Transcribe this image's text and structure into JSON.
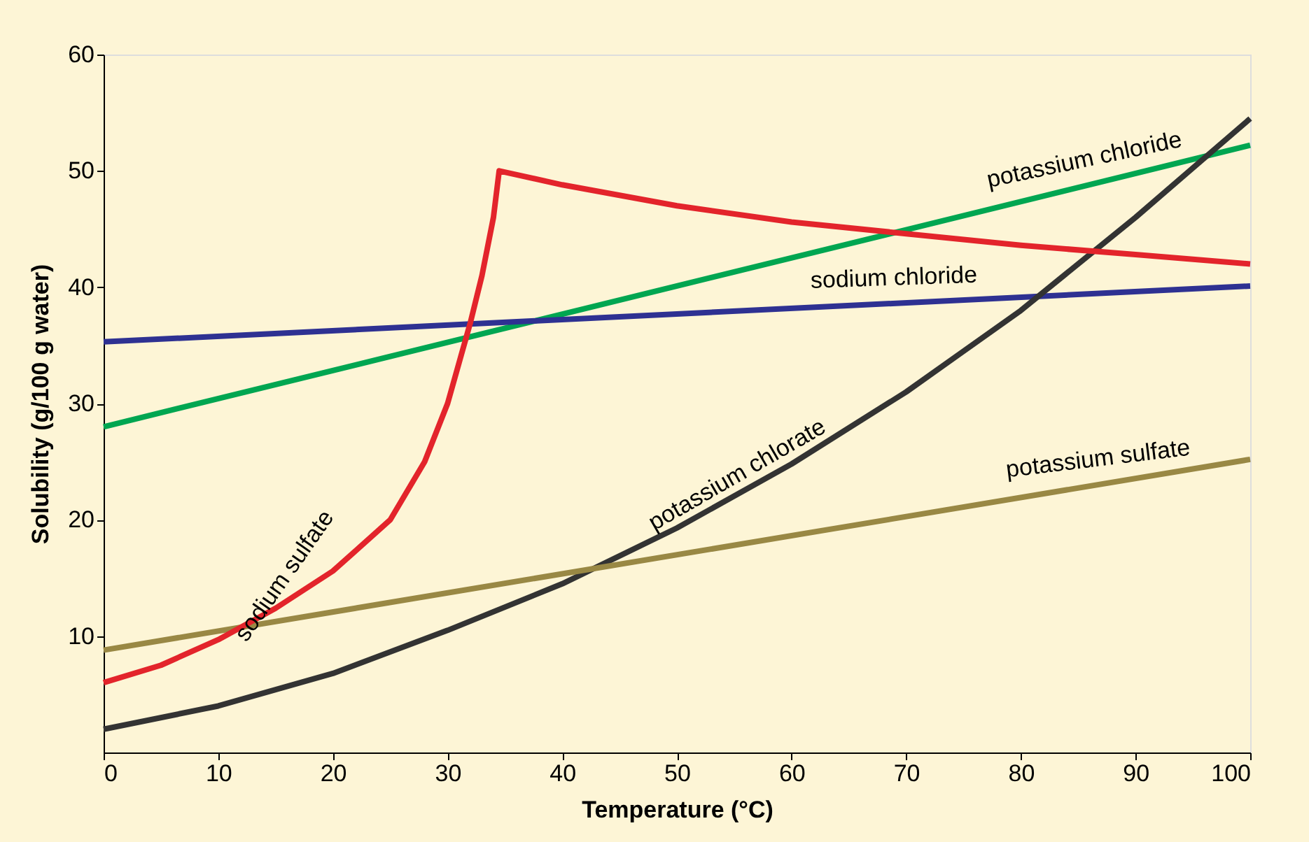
{
  "chart_data": {
    "type": "line",
    "xlabel": "Temperature (°C)",
    "ylabel": "Solubility (g/100 g water)",
    "xlim": [
      0,
      100
    ],
    "ylim": [
      0,
      60
    ],
    "xticks": [
      0,
      10,
      20,
      30,
      40,
      50,
      60,
      70,
      80,
      90,
      100
    ],
    "yticks": [
      10,
      20,
      30,
      40,
      50,
      60
    ],
    "grid": false,
    "legend": false,
    "marker": "none",
    "line_style": "solid",
    "series": [
      {
        "name": "potassium chloride",
        "color": "#00a651",
        "x": [
          0,
          100
        ],
        "values": [
          28,
          52.2
        ]
      },
      {
        "name": "sodium chloride",
        "color": "#2e3192",
        "x": [
          0,
          100
        ],
        "values": [
          35.3,
          40.1
        ]
      },
      {
        "name": "potassium chlorate",
        "color": "#333333",
        "x": [
          0,
          10,
          20,
          30,
          40,
          50,
          60,
          70,
          80,
          90,
          100
        ],
        "values": [
          2,
          4,
          6.8,
          10.5,
          14.5,
          19.3,
          24.8,
          31,
          38,
          46,
          54.5
        ]
      },
      {
        "name": "potassium sulfate",
        "color": "#998844",
        "x": [
          0,
          100
        ],
        "values": [
          8.8,
          25.2
        ]
      },
      {
        "name": "sodium sulfate",
        "color": "#e3242b",
        "x": [
          0,
          5,
          10,
          15,
          20,
          25,
          28,
          30,
          32,
          33,
          34,
          34.5,
          40,
          50,
          60,
          70,
          80,
          90,
          100
        ],
        "values": [
          6,
          7.5,
          9.7,
          12.4,
          15.6,
          20,
          25,
          30,
          37,
          41,
          46,
          50,
          48.8,
          47,
          45.6,
          44.6,
          43.6,
          42.8,
          42
        ]
      }
    ]
  }
}
